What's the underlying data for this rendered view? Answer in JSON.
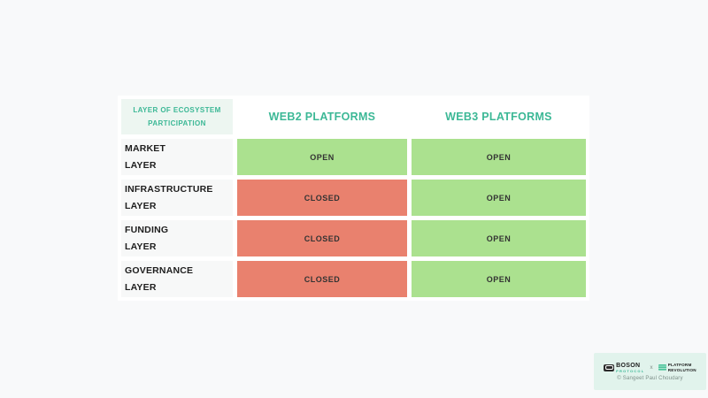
{
  "colors": {
    "page_bg": "#f8f9fa",
    "accent_teal": "#3cb896",
    "open_green": "#abe18f",
    "closed_red": "#e9816e",
    "corner_bg": "#edf6f1",
    "credit_bg": "#e1f3ec"
  },
  "table": {
    "corner": {
      "line1": "LAYER OF ECOSYSTEM",
      "line2": "PARTICIPATION"
    },
    "columns": [
      "WEB2 PLATFORMS",
      "WEB3 PLATFORMS"
    ],
    "rows": [
      {
        "label": [
          "MARKET",
          "LAYER"
        ],
        "cells": [
          {
            "value": "OPEN",
            "status": "open"
          },
          {
            "value": "OPEN",
            "status": "open"
          }
        ]
      },
      {
        "label": [
          "INFRASTRUCTURE",
          "LAYER"
        ],
        "cells": [
          {
            "value": "CLOSED",
            "status": "closed"
          },
          {
            "value": "OPEN",
            "status": "open"
          }
        ]
      },
      {
        "label": [
          "FUNDING",
          "LAYER"
        ],
        "cells": [
          {
            "value": "CLOSED",
            "status": "closed"
          },
          {
            "value": "OPEN",
            "status": "open"
          }
        ]
      },
      {
        "label": [
          "GOVERNANCE",
          "LAYER"
        ],
        "cells": [
          {
            "value": "CLOSED",
            "status": "closed"
          },
          {
            "value": "OPEN",
            "status": "open"
          }
        ]
      }
    ]
  },
  "footer": {
    "boson_name": "BOSON",
    "boson_sub": "PROTOCOL",
    "separator": "x",
    "platform_line1": "PLATFORM",
    "platform_line2": "REVOLUTION",
    "copyright": "© Sangeet Paul Choudary"
  }
}
